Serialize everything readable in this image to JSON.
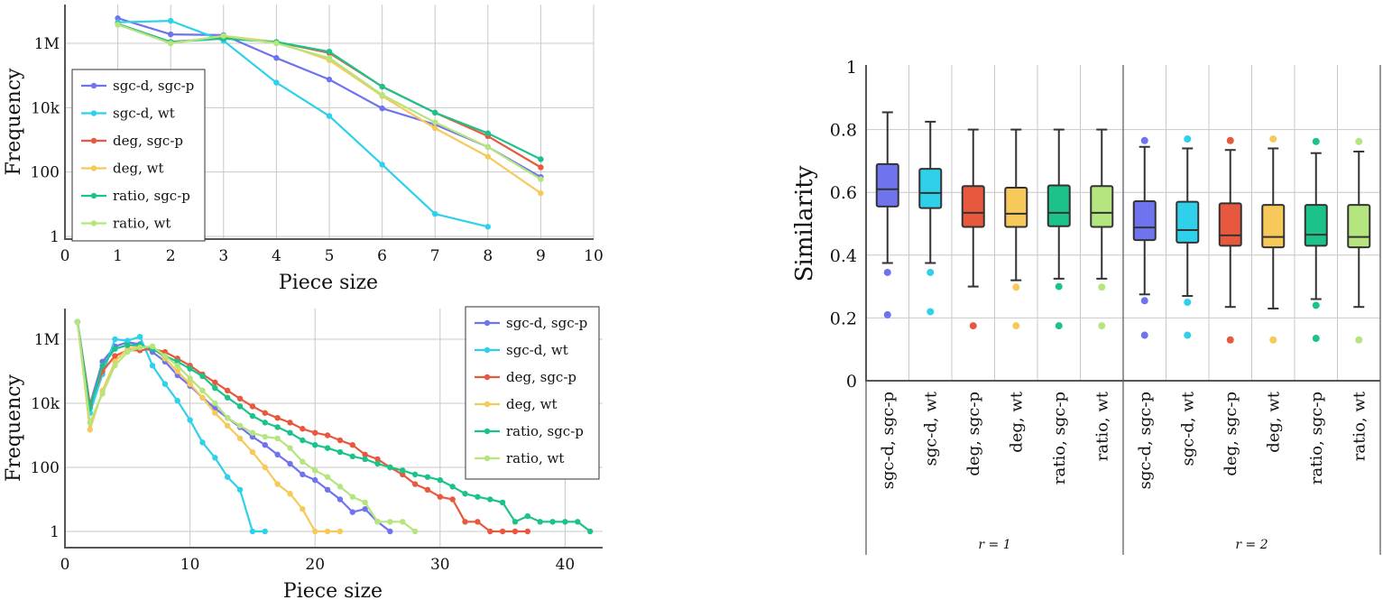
{
  "colors": {
    "sgc_d_sgc_p": "#6f74ee",
    "sgc_d_wt": "#2ed0ea",
    "deg_sgc_p": "#e8583f",
    "deg_wt": "#f7c85a",
    "ratio_sgc_p": "#1bc38a",
    "ratio_wt": "#b5e57e"
  },
  "chart_data": [
    {
      "type": "line",
      "yscale": "log",
      "xlabel": "Piece size",
      "ylabel": "Frequency",
      "xlim": [
        0,
        10
      ],
      "xticks": [
        "0",
        "1",
        "2",
        "3",
        "4",
        "5",
        "6",
        "7",
        "8",
        "9",
        "10"
      ],
      "yticks": [
        {
          "value": 1,
          "label": "1"
        },
        {
          "value": 100,
          "label": "100"
        },
        {
          "value": 10000,
          "label": "10k"
        },
        {
          "value": 1000000,
          "label": "1M"
        }
      ],
      "legend_position": "middle-left",
      "series": [
        {
          "name": "sgc-d, sgc-p",
          "color_key": "sgc_d_sgc_p",
          "x": [
            1,
            2,
            3,
            4,
            5,
            6,
            7,
            8,
            9
          ],
          "y": [
            6000000,
            1900000,
            1800000,
            350000,
            75000,
            9500,
            3000,
            600,
            70
          ]
        },
        {
          "name": "sgc-d, wt",
          "color_key": "sgc_d_wt",
          "x": [
            1,
            2,
            3,
            4,
            5,
            6,
            7,
            8
          ],
          "y": [
            4500000,
            5000000,
            1200000,
            60000,
            5500,
            170,
            5,
            2
          ]
        },
        {
          "name": "deg, sgc-p",
          "color_key": "deg_sgc_p",
          "x": [
            1,
            2,
            3,
            4,
            5,
            6,
            7,
            8,
            9
          ],
          "y": [
            4000000,
            1100000,
            1500000,
            1100000,
            500000,
            45000,
            7000,
            1300,
            140
          ]
        },
        {
          "name": "deg, wt",
          "color_key": "deg_wt",
          "x": [
            1,
            2,
            3,
            4,
            5,
            6,
            7,
            8,
            9
          ],
          "y": [
            4000000,
            1000000,
            1700000,
            1100000,
            300000,
            23000,
            2300,
            300,
            22
          ]
        },
        {
          "name": "ratio, sgc-p",
          "color_key": "ratio_sgc_p",
          "x": [
            1,
            2,
            3,
            4,
            5,
            6,
            7,
            8,
            9
          ],
          "y": [
            4000000,
            1100000,
            1400000,
            1100000,
            550000,
            45000,
            7000,
            1600,
            250
          ]
        },
        {
          "name": "ratio, wt",
          "color_key": "ratio_wt",
          "x": [
            1,
            2,
            3,
            4,
            5,
            6,
            7,
            8,
            9
          ],
          "y": [
            3800000,
            1000000,
            1700000,
            1000000,
            350000,
            25000,
            3500,
            600,
            60
          ]
        }
      ]
    },
    {
      "type": "line",
      "yscale": "log",
      "xlabel": "Piece size",
      "ylabel": "Frequency",
      "xlim": [
        0,
        43
      ],
      "xticks": [
        "0",
        "10",
        "20",
        "30",
        "40"
      ],
      "yticks": [
        {
          "value": 1,
          "label": "1"
        },
        {
          "value": 100,
          "label": "100"
        },
        {
          "value": 10000,
          "label": "10k"
        },
        {
          "value": 1000000,
          "label": "1M"
        }
      ],
      "legend_position": "top-right",
      "series": [
        {
          "name": "sgc-d, sgc-p",
          "color_key": "sgc_d_sgc_p",
          "x": [
            1,
            2,
            3,
            4,
            5,
            6,
            7,
            8,
            9,
            10,
            11,
            12,
            13,
            14,
            15,
            16,
            17,
            18,
            19,
            20,
            21,
            22,
            23,
            24,
            25,
            26
          ],
          "y": [
            3500000,
            9000,
            200000,
            600000,
            800000,
            700000,
            400000,
            200000,
            75000,
            35000,
            15000,
            7000,
            3500,
            1800,
            900,
            500,
            250,
            130,
            60,
            40,
            20,
            10,
            4,
            5,
            2,
            1
          ]
        },
        {
          "name": "sgc-d, wt",
          "color_key": "sgc_d_wt",
          "x": [
            1,
            2,
            3,
            4,
            5,
            6,
            7,
            8,
            9,
            10,
            11,
            12,
            13,
            14,
            15,
            16
          ],
          "y": [
            3500000,
            5000,
            80000,
            1000000,
            900000,
            1200000,
            150000,
            40000,
            12000,
            3000,
            600,
            200,
            50,
            20,
            1,
            1
          ]
        },
        {
          "name": "deg, sgc-p",
          "color_key": "deg_sgc_p",
          "x": [
            1,
            2,
            3,
            4,
            5,
            6,
            7,
            8,
            9,
            10,
            11,
            12,
            13,
            14,
            15,
            16,
            17,
            18,
            19,
            20,
            21,
            22,
            23,
            24,
            25,
            26,
            27,
            28,
            29,
            30,
            31,
            32,
            33,
            34,
            35,
            36,
            37
          ],
          "y": [
            3500000,
            9000,
            100000,
            300000,
            450000,
            450000,
            500000,
            400000,
            250000,
            150000,
            80000,
            45000,
            25000,
            14000,
            8000,
            5000,
            3500,
            2500,
            1600,
            1200,
            1000,
            700,
            500,
            250,
            180,
            100,
            60,
            30,
            20,
            12,
            10,
            2,
            2,
            1,
            1,
            1,
            1
          ]
        },
        {
          "name": "deg, wt",
          "color_key": "deg_wt",
          "x": [
            1,
            2,
            3,
            4,
            5,
            6,
            7,
            8,
            9,
            10,
            11,
            12,
            13,
            14,
            15,
            16,
            17,
            18,
            19,
            20,
            21,
            22
          ],
          "y": [
            3500000,
            1500,
            25000,
            200000,
            500000,
            600000,
            550000,
            250000,
            100000,
            40000,
            15000,
            5000,
            2000,
            800,
            300,
            100,
            30,
            15,
            5,
            1,
            1,
            1
          ]
        },
        {
          "name": "ratio, sgc-p",
          "color_key": "ratio_sgc_p",
          "x": [
            1,
            2,
            3,
            4,
            5,
            6,
            7,
            8,
            9,
            10,
            11,
            12,
            13,
            14,
            15,
            16,
            17,
            18,
            19,
            20,
            21,
            22,
            23,
            24,
            25,
            26,
            27,
            28,
            29,
            30,
            31,
            32,
            33,
            34,
            35,
            36,
            37,
            38,
            39,
            40,
            41,
            42
          ],
          "y": [
            3500000,
            7000,
            150000,
            500000,
            650000,
            650000,
            500000,
            300000,
            200000,
            120000,
            70000,
            30000,
            15000,
            8000,
            4000,
            2500,
            1800,
            1200,
            700,
            500,
            400,
            300,
            220,
            180,
            130,
            100,
            80,
            60,
            50,
            40,
            25,
            15,
            12,
            10,
            8,
            2,
            3,
            2,
            2,
            2,
            2,
            1
          ]
        },
        {
          "name": "ratio, wt",
          "color_key": "ratio_wt",
          "x": [
            1,
            2,
            3,
            4,
            5,
            6,
            7,
            8,
            9,
            10,
            11,
            12,
            13,
            14,
            15,
            16,
            17,
            18,
            19,
            20,
            21,
            22,
            23,
            24,
            25,
            26,
            27,
            28
          ],
          "y": [
            3500000,
            2500,
            20000,
            150000,
            400000,
            550000,
            600000,
            300000,
            150000,
            60000,
            25000,
            10000,
            3500,
            2000,
            1200,
            900,
            800,
            400,
            150,
            80,
            50,
            25,
            12,
            8,
            2,
            2,
            2,
            1
          ]
        }
      ]
    },
    {
      "type": "box",
      "ylabel": "Similarity",
      "ylim": [
        0,
        1
      ],
      "yticks": [
        "0",
        "0.2",
        "0.4",
        "0.6",
        "0.8",
        "1"
      ],
      "groups": [
        {
          "label": "r = 1"
        },
        {
          "label": "r = 2"
        }
      ],
      "boxes": [
        {
          "label": "sgc-d, sgc-p",
          "group": 0,
          "color_key": "sgc_d_sgc_p",
          "whisker_low": 0.375,
          "q1": 0.555,
          "median": 0.61,
          "q3": 0.69,
          "whisker_high": 0.855,
          "outliers": [
            0.345,
            0.21
          ]
        },
        {
          "label": "sgc-d, wt",
          "group": 0,
          "color_key": "sgc_d_wt",
          "whisker_low": 0.375,
          "q1": 0.55,
          "median": 0.598,
          "q3": 0.675,
          "whisker_high": 0.825,
          "outliers": [
            0.345,
            0.22
          ]
        },
        {
          "label": "deg, sgc-p",
          "group": 0,
          "color_key": "deg_sgc_p",
          "whisker_low": 0.3,
          "q1": 0.49,
          "median": 0.535,
          "q3": 0.62,
          "whisker_high": 0.8,
          "outliers": [
            0.175
          ]
        },
        {
          "label": "deg, wt",
          "group": 0,
          "color_key": "deg_wt",
          "whisker_low": 0.32,
          "q1": 0.49,
          "median": 0.532,
          "q3": 0.615,
          "whisker_high": 0.8,
          "outliers": [
            0.298,
            0.175
          ]
        },
        {
          "label": "ratio, sgc-p",
          "group": 0,
          "color_key": "ratio_sgc_p",
          "whisker_low": 0.325,
          "q1": 0.492,
          "median": 0.535,
          "q3": 0.622,
          "whisker_high": 0.8,
          "outliers": [
            0.3,
            0.175
          ]
        },
        {
          "label": "ratio, wt",
          "group": 0,
          "color_key": "ratio_wt",
          "whisker_low": 0.325,
          "q1": 0.49,
          "median": 0.535,
          "q3": 0.62,
          "whisker_high": 0.8,
          "outliers": [
            0.298,
            0.175
          ]
        },
        {
          "label": "sgc-d, sgc-p",
          "group": 1,
          "color_key": "sgc_d_sgc_p",
          "whisker_low": 0.275,
          "q1": 0.448,
          "median": 0.488,
          "q3": 0.572,
          "whisker_high": 0.745,
          "outliers": [
            0.765,
            0.255,
            0.145
          ]
        },
        {
          "label": "sgc-d, wt",
          "group": 1,
          "color_key": "sgc_d_wt",
          "whisker_low": 0.27,
          "q1": 0.44,
          "median": 0.48,
          "q3": 0.57,
          "whisker_high": 0.74,
          "outliers": [
            0.77,
            0.25,
            0.145
          ]
        },
        {
          "label": "deg, sgc-p",
          "group": 1,
          "color_key": "deg_sgc_p",
          "whisker_low": 0.235,
          "q1": 0.43,
          "median": 0.463,
          "q3": 0.565,
          "whisker_high": 0.735,
          "outliers": [
            0.765,
            0.13
          ]
        },
        {
          "label": "deg, wt",
          "group": 1,
          "color_key": "deg_wt",
          "whisker_low": 0.23,
          "q1": 0.425,
          "median": 0.458,
          "q3": 0.56,
          "whisker_high": 0.74,
          "outliers": [
            0.77,
            0.13
          ]
        },
        {
          "label": "ratio, sgc-p",
          "group": 1,
          "color_key": "ratio_sgc_p",
          "whisker_low": 0.26,
          "q1": 0.43,
          "median": 0.465,
          "q3": 0.56,
          "whisker_high": 0.725,
          "outliers": [
            0.762,
            0.24,
            0.135
          ]
        },
        {
          "label": "ratio, wt",
          "group": 1,
          "color_key": "ratio_wt",
          "whisker_low": 0.235,
          "q1": 0.425,
          "median": 0.458,
          "q3": 0.56,
          "whisker_high": 0.73,
          "outliers": [
            0.762,
            0.13
          ]
        }
      ]
    }
  ]
}
